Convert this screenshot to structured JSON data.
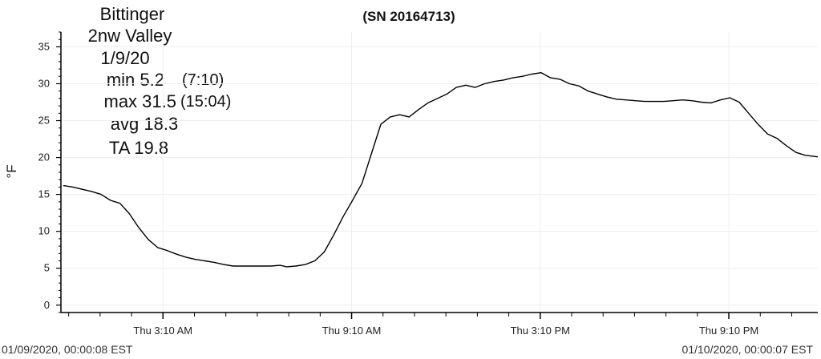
{
  "header": {
    "station_name": "Bittinger",
    "station_location": "2nw Valley",
    "date": "1/9/20",
    "min_label": "min 5.2",
    "min_time": "(7:10)",
    "max_label": "max 31.5",
    "max_time": "(15:04)",
    "avg_label": "avg 18.3",
    "ta_label": "TA 19.8",
    "serial": "(SN 20164713)"
  },
  "footer": {
    "start_timestamp": "01/09/2020, 00:00:08 EST",
    "end_timestamp": "01/10/2020, 00:00:07 EST"
  },
  "chart_data": {
    "type": "line",
    "ylabel": "°F",
    "xlabel": "",
    "ylim": [
      -1,
      37
    ],
    "yticks": [
      0,
      5,
      10,
      15,
      20,
      25,
      30,
      35
    ],
    "xlim_hours": [
      0,
      24
    ],
    "xtick_positions_hours": [
      3.17,
      9.17,
      15.17,
      21.17
    ],
    "xtick_labels": [
      "Thu 3:10 AM",
      "Thu 9:10 AM",
      "Thu 3:10 PM",
      "Thu 9:10 PM"
    ],
    "minor_tick_step_hours": 1,
    "grid": true,
    "series": [
      {
        "x_hours": [
          0,
          0.3,
          0.6,
          0.9,
          1.2,
          1.5,
          1.8,
          2.1,
          2.4,
          2.7,
          3.0,
          3.3,
          3.6,
          3.9,
          4.2,
          4.5,
          4.8,
          5.1,
          5.4,
          5.7,
          6.0,
          6.3,
          6.6,
          6.9,
          7.1,
          7.4,
          7.7,
          8.0,
          8.3,
          8.6,
          8.9,
          9.2,
          9.5,
          9.8,
          10.1,
          10.4,
          10.7,
          11.0,
          11.3,
          11.6,
          11.9,
          12.2,
          12.5,
          12.8,
          13.1,
          13.4,
          13.7,
          14.0,
          14.3,
          14.6,
          14.9,
          15.2,
          15.5,
          15.8,
          16.1,
          16.4,
          16.7,
          17.0,
          17.3,
          17.6,
          17.9,
          18.2,
          18.5,
          18.8,
          19.1,
          19.4,
          19.7,
          20.0,
          20.3,
          20.6,
          20.9,
          21.2,
          21.5,
          21.8,
          22.1,
          22.4,
          22.7,
          23.0,
          23.3,
          23.6,
          24.0
        ],
        "values": [
          16.2,
          16.0,
          15.7,
          15.4,
          15.0,
          14.2,
          13.8,
          12.4,
          10.5,
          8.9,
          7.8,
          7.4,
          6.9,
          6.5,
          6.2,
          6.0,
          5.8,
          5.5,
          5.3,
          5.3,
          5.3,
          5.3,
          5.3,
          5.4,
          5.2,
          5.3,
          5.5,
          6.0,
          7.2,
          9.5,
          12.0,
          14.2,
          16.5,
          20.5,
          24.5,
          25.5,
          25.8,
          25.5,
          26.5,
          27.4,
          28.0,
          28.6,
          29.5,
          29.8,
          29.5,
          30.0,
          30.3,
          30.5,
          30.8,
          31.0,
          31.3,
          31.5,
          30.8,
          30.6,
          30.0,
          29.7,
          29.0,
          28.6,
          28.2,
          27.9,
          27.8,
          27.7,
          27.6,
          27.6,
          27.6,
          27.7,
          27.8,
          27.7,
          27.5,
          27.4,
          27.8,
          28.1,
          27.5,
          26.0,
          24.5,
          23.2,
          22.6,
          21.6,
          20.7,
          20.3,
          20.1
        ]
      }
    ]
  }
}
